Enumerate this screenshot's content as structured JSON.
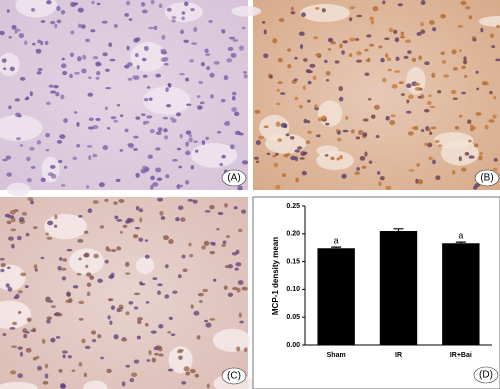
{
  "panel_labels": [
    "(A)",
    "(B)",
    "(C)",
    "(D)"
  ],
  "chart_data": {
    "type": "bar",
    "ylabel": "MCP-1 density mean",
    "categories": [
      "Sham",
      "IR",
      "IR+Bai"
    ],
    "values": [
      0.174,
      0.205,
      0.183
    ],
    "errors": [
      0.002,
      0.004,
      0.002
    ],
    "significance_labels": [
      "a",
      null,
      "a"
    ],
    "color": "#000000",
    "ylim": [
      0,
      0.25
    ],
    "yticks": [
      {
        "value": 0,
        "label": "0.00"
      },
      {
        "value": 0.05,
        "label": "0.05"
      },
      {
        "value": 0.1,
        "label": "0.10"
      },
      {
        "value": 0.15,
        "label": "0.15"
      },
      {
        "value": 0.2,
        "label": "0.20"
      },
      {
        "value": 0.25,
        "label": "0.25"
      }
    ],
    "grid": false
  }
}
